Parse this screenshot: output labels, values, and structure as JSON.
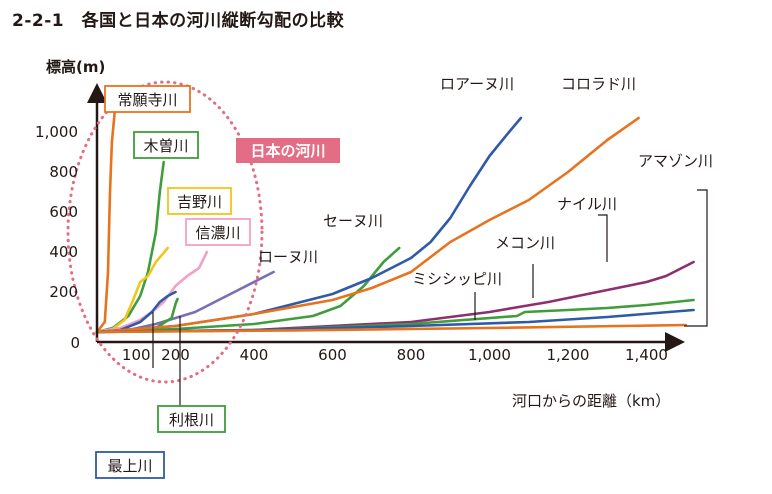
{
  "title": "2-2-1　各国と日本の河川縦断勾配の比較",
  "chart_data": {
    "type": "line",
    "xlabel": "河口からの距離（km）",
    "ylabel": "標高(m)",
    "xlim": [
      0,
      1500
    ],
    "ylim": [
      0,
      1100
    ],
    "xticks": [
      {
        "value": 100,
        "label": "100"
      },
      {
        "value": 200,
        "label": "200"
      },
      {
        "value": 400,
        "label": "400"
      },
      {
        "value": 600,
        "label": "600"
      },
      {
        "value": 800,
        "label": "800"
      },
      {
        "value": 1000,
        "label": "1,000"
      },
      {
        "value": 1200,
        "label": "1,200"
      },
      {
        "value": 1400,
        "label": "1,400"
      }
    ],
    "yticks": [
      {
        "value": 0,
        "label": "0"
      },
      {
        "value": 200,
        "label": "200"
      },
      {
        "value": 400,
        "label": "400"
      },
      {
        "value": 600,
        "label": "600"
      },
      {
        "value": 800,
        "label": "800"
      },
      {
        "value": 1000,
        "label": "1,000"
      }
    ],
    "grid": false,
    "annotation": "日本の河川",
    "series": [
      {
        "name": "常願寺川",
        "color": "#e8731f",
        "x": [
          0,
          20,
          28,
          33,
          38,
          45
        ],
        "y": [
          0,
          50,
          300,
          700,
          950,
          1100
        ]
      },
      {
        "name": "木曽川",
        "color": "#3f9d3b",
        "x": [
          0,
          40,
          80,
          110,
          130,
          150,
          160,
          170
        ],
        "y": [
          0,
          20,
          80,
          180,
          300,
          500,
          700,
          850
        ]
      },
      {
        "name": "吉野川",
        "color": "#f2c51c",
        "x": [
          0,
          40,
          70,
          90,
          110,
          130,
          150,
          180
        ],
        "y": [
          0,
          15,
          60,
          150,
          250,
          280,
          350,
          420
        ]
      },
      {
        "name": "信濃川",
        "color": "#f2a0c7",
        "x": [
          0,
          60,
          110,
          140,
          170,
          200,
          230,
          260,
          280
        ],
        "y": [
          0,
          20,
          60,
          100,
          150,
          230,
          280,
          320,
          400
        ]
      },
      {
        "name": "ローヌ川",
        "color": "#7a6fb4",
        "x": [
          0,
          80,
          150,
          250,
          350,
          450
        ],
        "y": [
          0,
          10,
          40,
          100,
          200,
          300
        ]
      },
      {
        "name": "利根川",
        "color": "#3f9d3b",
        "x": [
          0,
          80,
          150,
          190,
          200,
          205
        ],
        "y": [
          0,
          5,
          20,
          70,
          140,
          165
        ]
      },
      {
        "name": "最上川",
        "color": "#2f5aa8",
        "x": [
          0,
          60,
          110,
          140,
          160,
          180,
          200
        ],
        "y": [
          0,
          10,
          50,
          100,
          150,
          180,
          200
        ]
      },
      {
        "name": "セーヌ川",
        "color": "#3f9d3b",
        "x": [
          0,
          200,
          400,
          550,
          620,
          680,
          730,
          770
        ],
        "y": [
          0,
          15,
          40,
          80,
          130,
          230,
          350,
          420
        ]
      },
      {
        "name": "ロアーヌ川",
        "color": "#2f5aa8",
        "x": [
          0,
          200,
          400,
          600,
          700,
          800,
          850,
          900,
          950,
          1000,
          1050,
          1080
        ],
        "y": [
          0,
          30,
          90,
          190,
          270,
          370,
          450,
          570,
          730,
          880,
          1000,
          1070
        ]
      },
      {
        "name": "コロラド川",
        "color": "#e8731f",
        "x": [
          0,
          200,
          400,
          600,
          700,
          800,
          900,
          1000,
          1100,
          1200,
          1300,
          1380
        ],
        "y": [
          0,
          30,
          90,
          160,
          220,
          300,
          450,
          560,
          660,
          800,
          960,
          1070
        ]
      },
      {
        "name": "ミシシッピ川",
        "color": "#8e2f6f",
        "x": [
          0,
          400,
          800,
          1000,
          1150,
          1300,
          1400,
          1450,
          1520
        ],
        "y": [
          0,
          10,
          50,
          100,
          150,
          210,
          250,
          280,
          350
        ]
      },
      {
        "name": "メコン川",
        "color": "#3f9d3b",
        "x": [
          0,
          400,
          800,
          1070,
          1090,
          1200,
          1300,
          1400,
          1520
        ],
        "y": [
          0,
          8,
          40,
          80,
          100,
          110,
          120,
          135,
          160
        ]
      },
      {
        "name": "ナイル川",
        "color": "#2f5aa8",
        "x": [
          0,
          400,
          800,
          1100,
          1300,
          1520
        ],
        "y": [
          0,
          10,
          30,
          50,
          75,
          110
        ]
      },
      {
        "name": "アマゾン川",
        "color": "#e8731f",
        "x": [
          0,
          500,
          1000,
          1500
        ],
        "y": [
          0,
          8,
          20,
          35
        ]
      }
    ],
    "labels": [
      {
        "text": "常願寺川",
        "boxed": true,
        "color": "#e8731f"
      },
      {
        "text": "木曽川",
        "boxed": true,
        "color": "#3f9d3b"
      },
      {
        "text": "吉野川",
        "boxed": true,
        "color": "#f2c51c"
      },
      {
        "text": "信濃川",
        "boxed": true,
        "color": "#f2a0c7"
      },
      {
        "text": "利根川",
        "boxed": true,
        "color": "#3f9d3b"
      },
      {
        "text": "最上川",
        "boxed": true,
        "color": "#2f5aa8"
      },
      {
        "text": "ローヌ川",
        "boxed": false,
        "color": "#231815"
      },
      {
        "text": "セーヌ川",
        "boxed": false,
        "color": "#231815"
      },
      {
        "text": "ロアーヌ川",
        "boxed": false,
        "color": "#231815"
      },
      {
        "text": "コロラド川",
        "boxed": false,
        "color": "#231815"
      },
      {
        "text": "ミシシッピ川",
        "boxed": false,
        "color": "#231815"
      },
      {
        "text": "メコン川",
        "boxed": false,
        "color": "#231815"
      },
      {
        "text": "ナイル川",
        "boxed": false,
        "color": "#231815"
      },
      {
        "text": "アマゾン川",
        "boxed": false,
        "color": "#231815"
      }
    ]
  }
}
